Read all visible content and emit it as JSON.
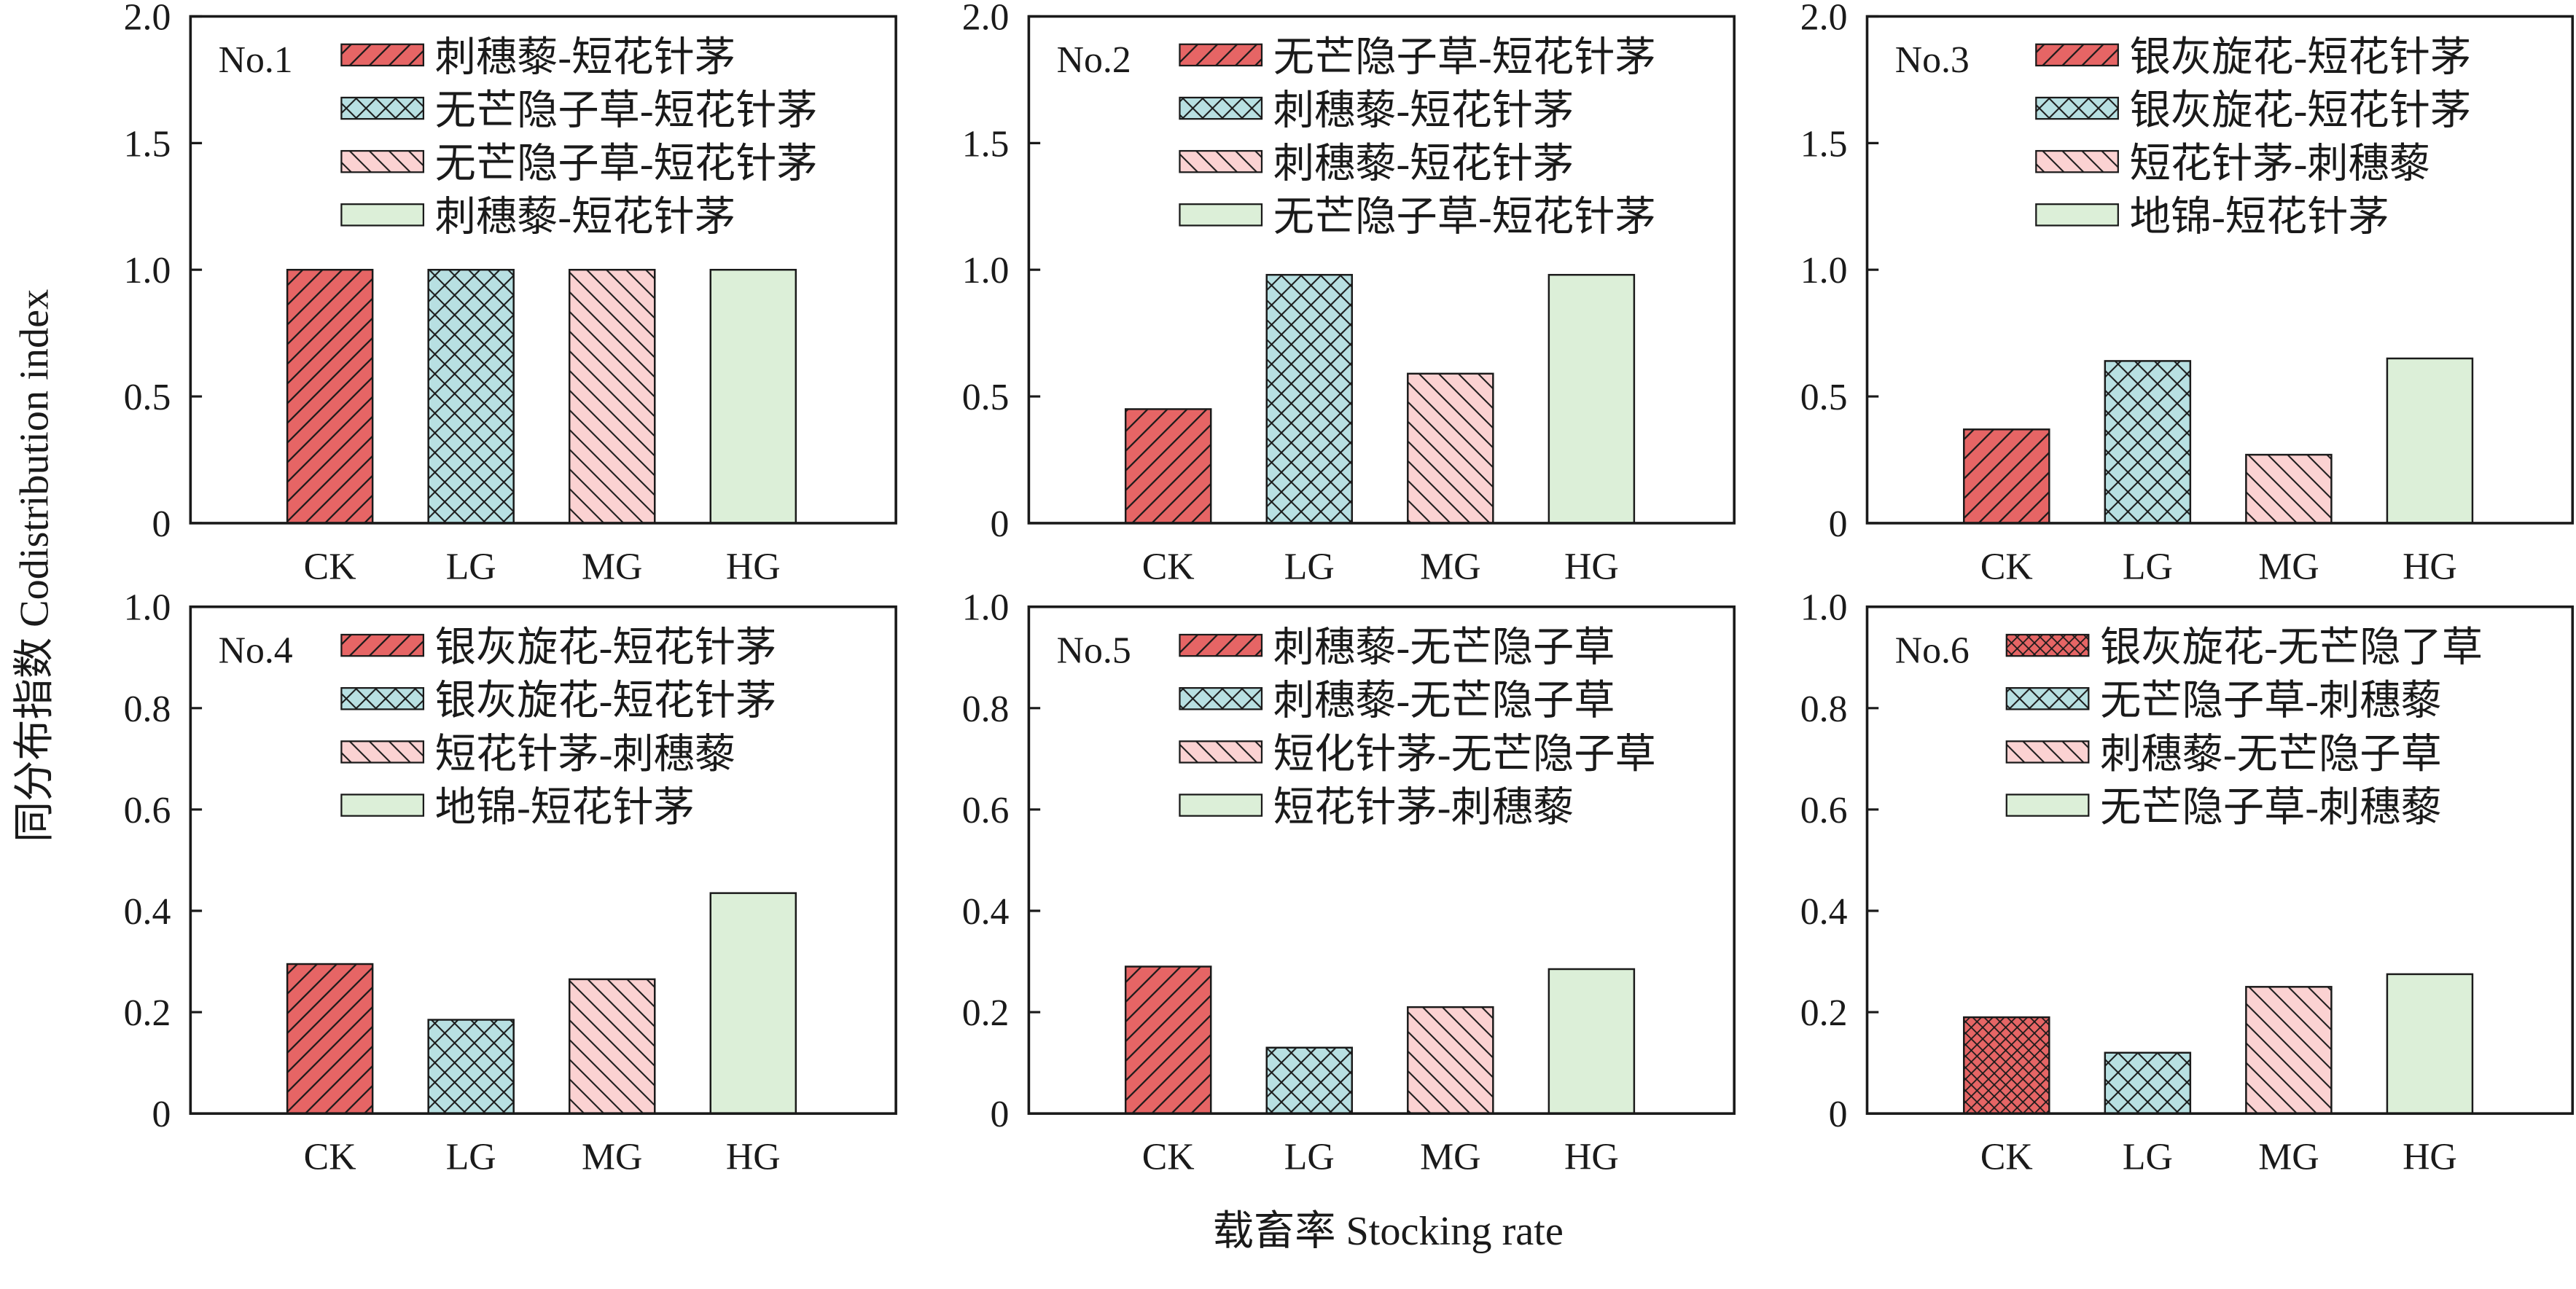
{
  "figure": {
    "ylabel": "同分布指数 Codistribution index",
    "xlabel": "载畜率 Stocking rate"
  },
  "colors": {
    "red_fill": "#e66565",
    "blue_fill": "#b8e0e2",
    "pink_fill": "#fbd2d2",
    "green_fill": "#dcefd8",
    "stroke": "#1a1a1a"
  },
  "chart_data": [
    {
      "type": "bar",
      "title": "No.1",
      "categories": [
        "CK",
        "LG",
        "MG",
        "HG"
      ],
      "values": [
        1.0,
        1.0,
        1.0,
        1.0
      ],
      "ylim": [
        0,
        2.0
      ],
      "yticks": [
        "0",
        "0.5",
        "1.0",
        "1.5",
        "2.0"
      ],
      "legend": [
        "刺穗藜-短花针茅",
        "无芒隐子草-短花针茅",
        "无芒隐子草-短花针茅",
        "刺穗藜-短花针茅"
      ]
    },
    {
      "type": "bar",
      "title": "No.2",
      "categories": [
        "CK",
        "LG",
        "MG",
        "HG"
      ],
      "values": [
        0.45,
        0.98,
        0.59,
        0.98
      ],
      "ylim": [
        0,
        2.0
      ],
      "yticks": [
        "0",
        "0.5",
        "1.0",
        "1.5",
        "2.0"
      ],
      "legend": [
        "无芒隐子草-短花针茅",
        "刺穗藜-短花针茅",
        "刺穗藜-短花针茅",
        "无芒隐子草-短花针茅"
      ]
    },
    {
      "type": "bar",
      "title": "No.3",
      "categories": [
        "CK",
        "LG",
        "MG",
        "HG"
      ],
      "values": [
        0.37,
        0.64,
        0.27,
        0.65
      ],
      "ylim": [
        0,
        2.0
      ],
      "yticks": [
        "0",
        "0.5",
        "1.0",
        "1.5",
        "2.0"
      ],
      "legend": [
        "银灰旋花-短花针茅",
        "银灰旋花-短花针茅",
        "短花针茅-刺穗藜",
        "地锦-短花针茅"
      ]
    },
    {
      "type": "bar",
      "title": "No.4",
      "categories": [
        "CK",
        "LG",
        "MG",
        "HG"
      ],
      "values": [
        0.295,
        0.185,
        0.265,
        0.435
      ],
      "ylim": [
        0,
        1.0
      ],
      "yticks": [
        "0",
        "0.2",
        "0.4",
        "0.6",
        "0.8",
        "1.0"
      ],
      "legend": [
        "银灰旋花-短花针茅",
        "银灰旋花-短花针茅",
        "短花针茅-刺穗藜",
        "地锦-短花针茅"
      ]
    },
    {
      "type": "bar",
      "title": "No.5",
      "categories": [
        "CK",
        "LG",
        "MG",
        "HG"
      ],
      "values": [
        0.29,
        0.13,
        0.21,
        0.285
      ],
      "ylim": [
        0,
        1.0
      ],
      "yticks": [
        "0",
        "0.2",
        "0.4",
        "0.6",
        "0.8",
        "1.0"
      ],
      "legend": [
        "刺穗藜-无芒隐子草",
        "刺穗藜-无芒隐子草",
        "短化针茅-无芒隐子草",
        "短花针茅-刺穗藜"
      ]
    },
    {
      "type": "bar",
      "title": "No.6",
      "categories": [
        "CK",
        "LG",
        "MG",
        "HG"
      ],
      "values": [
        0.19,
        0.12,
        0.25,
        0.275
      ],
      "ylim": [
        0,
        1.0
      ],
      "yticks": [
        "0",
        "0.2",
        "0.4",
        "0.6",
        "0.8",
        "1.0"
      ],
      "legend": [
        "银灰旋花-无芒隐了草",
        "无芒隐子草-刺穗藜",
        "刺穗藜-无芒隐子草",
        "无芒隐子草-刺穗藜"
      ]
    }
  ]
}
